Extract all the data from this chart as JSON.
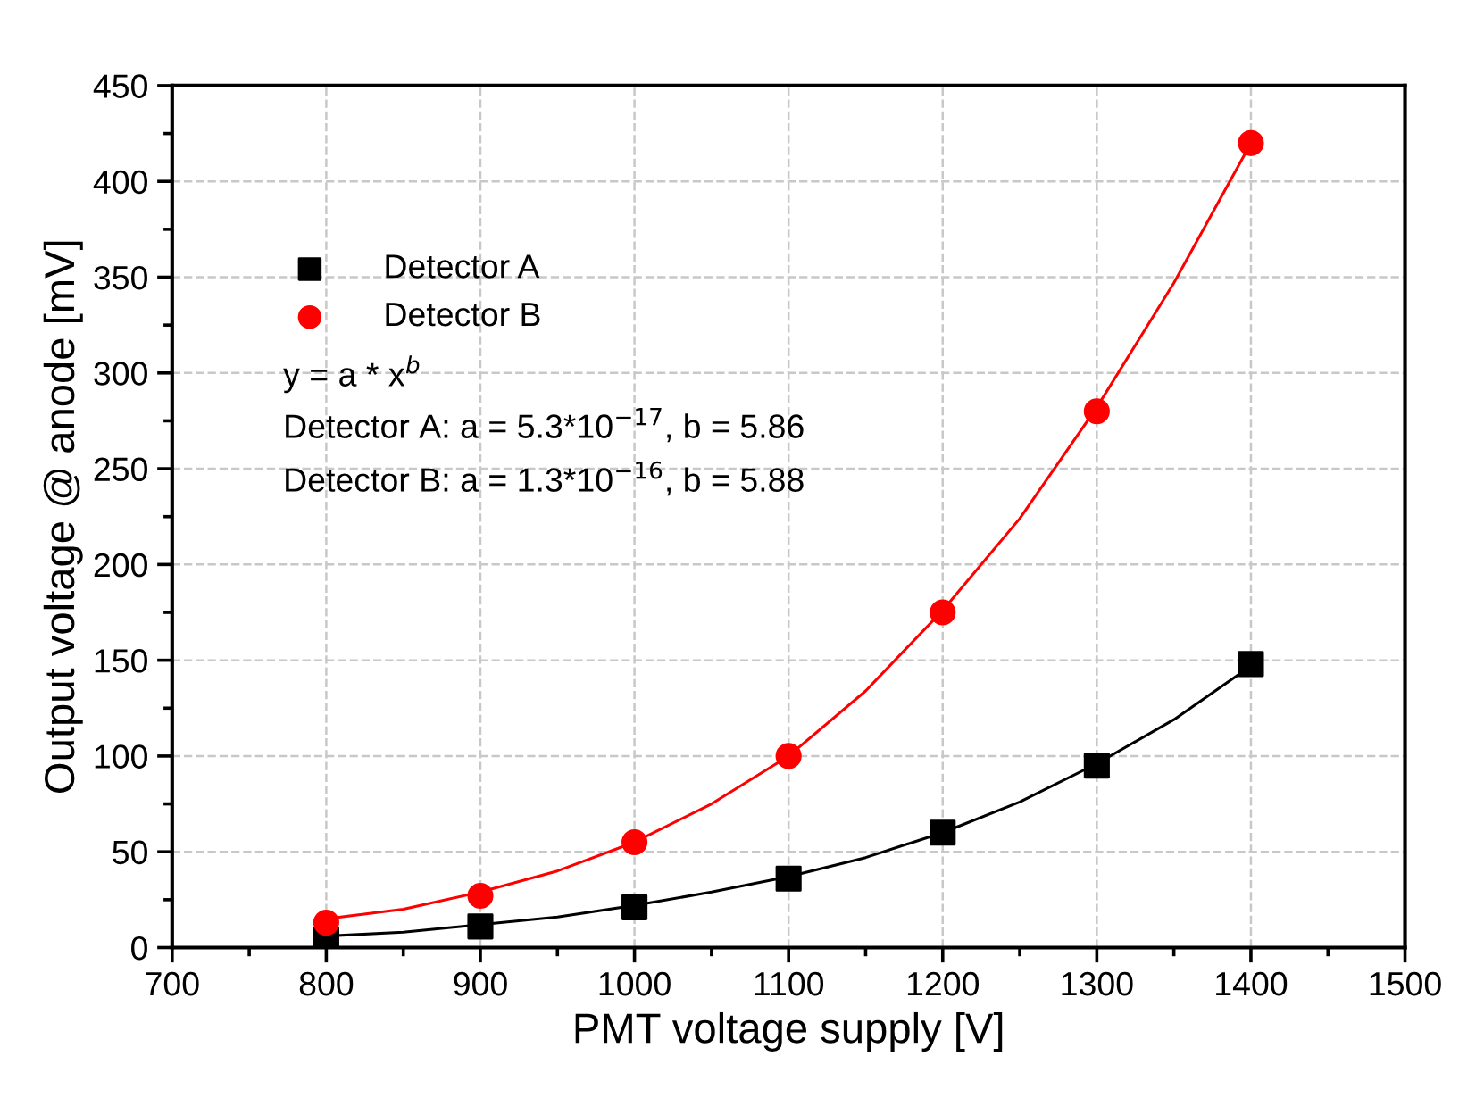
{
  "chart_data": {
    "type": "scatter",
    "xlabel": "PMT voltage supply [V]",
    "ylabel": "Output voltage @ anode [mV]",
    "xlim": [
      700,
      1500
    ],
    "xticks": [
      700,
      800,
      900,
      1000,
      1100,
      1200,
      1300,
      1400,
      1500
    ],
    "ylim": [
      0,
      450
    ],
    "yticks": [
      0,
      50,
      100,
      150,
      200,
      250,
      300,
      350,
      400,
      450
    ],
    "grid": true,
    "legend": "top left",
    "series": [
      {
        "name": "Detector A",
        "marker": "square",
        "color": "#000000",
        "x": [
          800,
          900,
          1000,
          1100,
          1200,
          1300,
          1400
        ],
        "values": [
          4,
          11,
          21,
          36,
          60,
          95,
          148
        ]
      },
      {
        "name": "Detector B",
        "marker": "circle",
        "color": "#ff0000",
        "x": [
          800,
          900,
          1000,
          1100,
          1200,
          1300,
          1400
        ],
        "values": [
          13,
          27,
          55,
          100,
          175,
          280,
          420
        ]
      },
      {
        "type": "line",
        "marker": "none",
        "color": "#000000",
        "x": [
          800,
          850,
          900,
          950,
          1000,
          1050,
          1100,
          1150,
          1200,
          1250,
          1300,
          1350,
          1400
        ],
        "values": [
          6,
          8,
          12,
          16,
          22,
          29,
          37,
          47,
          60,
          76,
          96,
          119,
          147
        ]
      },
      {
        "type": "line",
        "marker": "none",
        "color": "#ff0000",
        "x": [
          800,
          850,
          900,
          950,
          1000,
          1050,
          1100,
          1150,
          1200,
          1250,
          1300,
          1350,
          1400
        ],
        "values": [
          15,
          20,
          29,
          40,
          55,
          75,
          100,
          134,
          176,
          224,
          282,
          347,
          420
        ]
      }
    ],
    "annotations": [
      "y = a * x$^{b}$",
      "Detector A: a = 5.3*10$^{−17}$, b = 5.86",
      "Detector B: a = 1.3*10$^{−16}$, b = 5.88"
    ]
  }
}
